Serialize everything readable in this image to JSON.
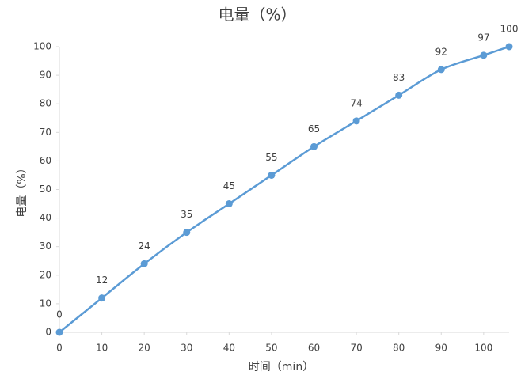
{
  "chart_data": {
    "type": "line",
    "title": "电量（%）",
    "x_label": "时间（min）",
    "y_label": "电量（%）",
    "x": [
      0,
      10,
      20,
      30,
      40,
      50,
      60,
      70,
      80,
      90,
      100,
      106
    ],
    "series": [
      {
        "name": "电量",
        "color": "#5b9bd5",
        "values": [
          0,
          12,
          24,
          35,
          45,
          55,
          65,
          74,
          83,
          92,
          97,
          100
        ]
      }
    ],
    "xlim": [
      0,
      106
    ],
    "xticks": [
      0,
      10,
      20,
      30,
      40,
      50,
      60,
      70,
      80,
      90,
      100
    ],
    "ylim": [
      0,
      100
    ],
    "yticks": [
      0,
      10,
      20,
      30,
      40,
      50,
      60,
      70,
      80,
      90,
      100
    ],
    "grid": false,
    "smooth": true
  }
}
